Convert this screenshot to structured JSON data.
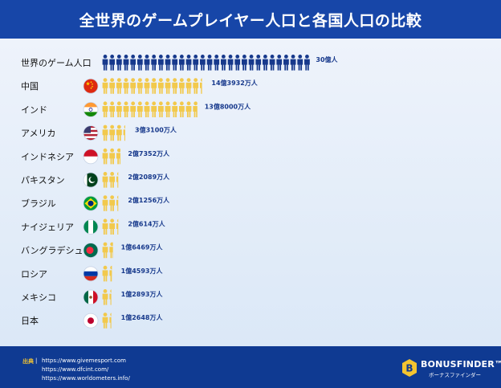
{
  "title": "全世界のゲームプレイヤー人口と各国人口の比較",
  "colors": {
    "header_bg": "#1746a8",
    "world_icon": "#17398c",
    "country_icon": "#f2c94c",
    "value_text": "#17398c",
    "label_text": "#111111",
    "footer_bg": "#0f3a92",
    "source_label": "#f4c430"
  },
  "chart_data": {
    "type": "pictogram-bar",
    "unit_per_icon": "1億人",
    "rows": [
      {
        "label": "世界のゲーム人口",
        "value_text": "30億人",
        "value": 3000000000,
        "flag": "none",
        "color": "world"
      },
      {
        "label": "中国",
        "value_text": "14億3932万人",
        "value": 1439320000,
        "flag": "china-flag",
        "color": "country"
      },
      {
        "label": "インド",
        "value_text": "13億8000万人",
        "value": 1380000000,
        "flag": "india-flag",
        "color": "country"
      },
      {
        "label": "アメリカ",
        "value_text": "3億3100万人",
        "value": 331000000,
        "flag": "usa-flag",
        "color": "country"
      },
      {
        "label": "インドネシア",
        "value_text": "2億7352万人",
        "value": 273520000,
        "flag": "indonesia-flag",
        "color": "country"
      },
      {
        "label": "パキスタン",
        "value_text": "2億2089万人",
        "value": 220890000,
        "flag": "pakistan-flag",
        "color": "country"
      },
      {
        "label": "ブラジル",
        "value_text": "2億1256万人",
        "value": 212560000,
        "flag": "brazil-flag",
        "color": "country"
      },
      {
        "label": "ナイジェリア",
        "value_text": "2億614万人",
        "value": 206140000,
        "flag": "nigeria-flag",
        "color": "country"
      },
      {
        "label": "バングラデシュ",
        "value_text": "1億6469万人",
        "value": 164690000,
        "flag": "bangladesh-flag",
        "color": "country"
      },
      {
        "label": "ロシア",
        "value_text": "1億4593万人",
        "value": 145930000,
        "flag": "russia-flag",
        "color": "country"
      },
      {
        "label": "メキシコ",
        "value_text": "1億2893万人",
        "value": 128930000,
        "flag": "mexico-flag",
        "color": "country"
      },
      {
        "label": "日本",
        "value_text": "1億2648万人",
        "value": 126480000,
        "flag": "japan-flag",
        "color": "country"
      }
    ]
  },
  "footer": {
    "source_label": "出典",
    "divider": "|",
    "sources": [
      "https://www.givemesport.com",
      "https://www.dfcint.com/",
      "https://www.worldometers.info/"
    ],
    "logo_text": "BONUSFINDER™",
    "logo_sub": "ボーナスファインダー",
    "logo_icon": "b-shield-icon"
  }
}
